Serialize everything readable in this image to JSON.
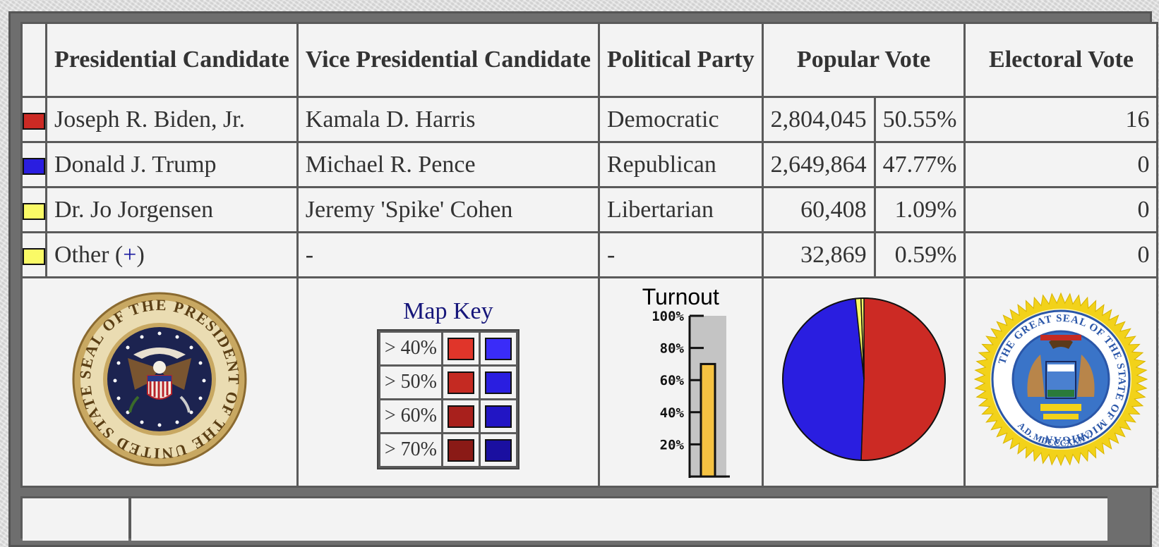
{
  "table": {
    "headers": {
      "presidential": "Presidential Candidate",
      "vice_presidential": "Vice Presidential Candidate",
      "party": "Political Party",
      "popular_vote": "Popular Vote",
      "electoral_vote": "Electoral Vote"
    },
    "rows": [
      {
        "swatch_color": "#cc2a24",
        "president": "Joseph R. Biden, Jr.",
        "vice": "Kamala D. Harris",
        "party": "Democratic",
        "votes": "2,804,045",
        "pct": "50.55%",
        "electoral": "16"
      },
      {
        "swatch_color": "#2a1ee0",
        "president": "Donald J. Trump",
        "vice": "Michael R. Pence",
        "party": "Republican",
        "votes": "2,649,864",
        "pct": "47.77%",
        "electoral": "0"
      },
      {
        "swatch_color": "#fafa66",
        "president": "Dr. Jo Jorgensen",
        "vice": "Jeremy 'Spike' Cohen",
        "party": "Libertarian",
        "votes": "60,408",
        "pct": "1.09%",
        "electoral": "0"
      },
      {
        "swatch_color": "#fafa66",
        "president_prefix": "Other (",
        "president_link": "+",
        "president_suffix": ")",
        "vice": "-",
        "party": "-",
        "votes": "32,869",
        "pct": "0.59%",
        "electoral": "0"
      }
    ]
  },
  "seals": {
    "president_text": "SEAL OF THE PRESIDENT OF THE UNITED STATES",
    "michigan_text": "THE GREAT SEAL OF THE STATE OF MICHIGAN",
    "michigan_date": "A.D. MDCCCXXXV."
  },
  "map_key": {
    "title": "Map Key",
    "rows": [
      {
        "label": "> 40%",
        "dem": "#e0352a",
        "rep": "#3a2cf8"
      },
      {
        "label": "> 50%",
        "dem": "#c42a22",
        "rep": "#2a1ee0"
      },
      {
        "label": "> 60%",
        "dem": "#a8201c",
        "rep": "#2215c4"
      },
      {
        "label": "> 70%",
        "dem": "#8a1a16",
        "rep": "#1a0fa0"
      }
    ]
  },
  "turnout": {
    "title": "Turnout",
    "ticks": [
      "100%",
      "80%",
      "60%",
      "40%",
      "20%"
    ],
    "level": 0.7
  },
  "chart_data": {
    "type": "pie",
    "categories": [
      "Joseph R. Biden, Jr.",
      "Donald J. Trump",
      "Dr. Jo Jorgensen",
      "Other"
    ],
    "values": [
      50.55,
      47.77,
      1.09,
      0.59
    ],
    "colors": [
      "#cc2a24",
      "#2a1ee0",
      "#fafa66",
      "#fafa66"
    ]
  }
}
